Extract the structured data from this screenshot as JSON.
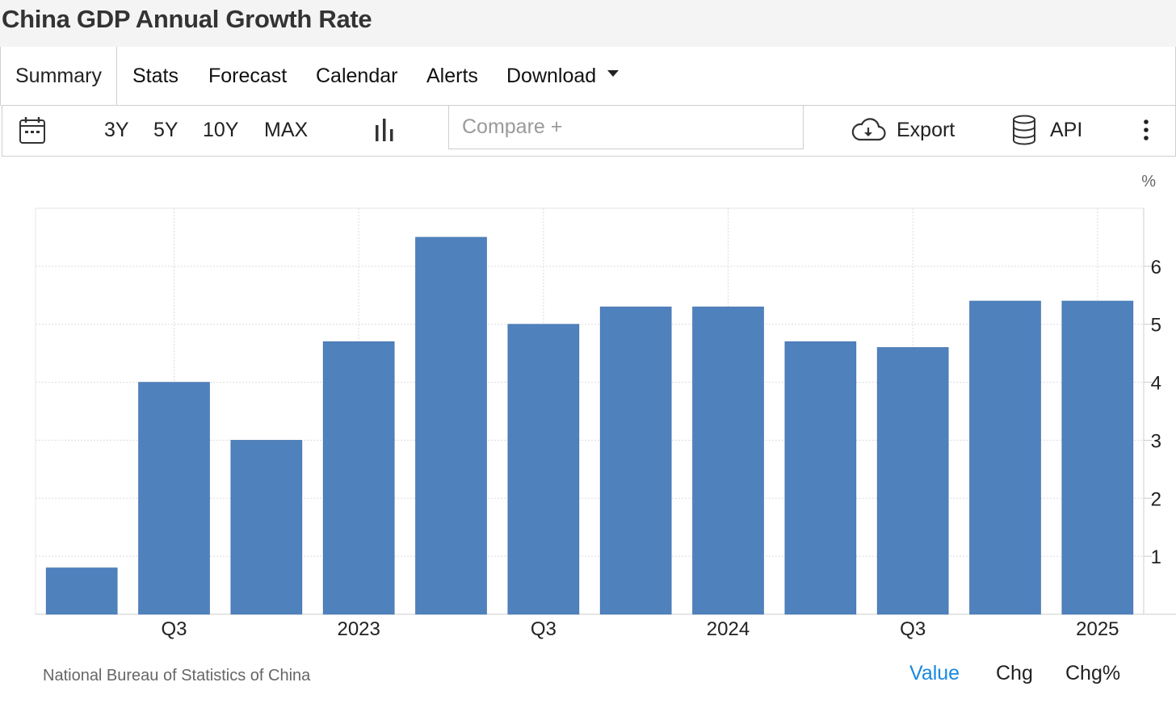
{
  "page_title": "China GDP Annual Growth Rate",
  "tabs": [
    {
      "label": "Summary",
      "active": true
    },
    {
      "label": "Stats"
    },
    {
      "label": "Forecast"
    },
    {
      "label": "Calendar"
    },
    {
      "label": "Alerts"
    },
    {
      "label": "Download"
    }
  ],
  "toolbar": {
    "ranges": [
      "3Y",
      "5Y",
      "10Y",
      "MAX"
    ],
    "compare_placeholder": "Compare +",
    "export_label": "Export",
    "api_label": "API",
    "icons": [
      "calendar-icon",
      "bar-chart-icon",
      "cloud-download-icon",
      "database-icon",
      "more-vertical-icon"
    ]
  },
  "chart_data": {
    "type": "bar",
    "unit": "%",
    "values": [
      0.8,
      4.0,
      3.0,
      4.7,
      6.5,
      5.0,
      5.3,
      5.3,
      4.7,
      4.6,
      5.4,
      5.4
    ],
    "x_tick_labels": [
      {
        "label": "Q3",
        "after_bar": 1
      },
      {
        "label": "2023",
        "after_bar": 3
      },
      {
        "label": "Q3",
        "after_bar": 5
      },
      {
        "label": "2024",
        "after_bar": 7
      },
      {
        "label": "Q3",
        "after_bar": 9
      },
      {
        "label": "2025",
        "after_bar": 11
      }
    ],
    "y_ticks": [
      1,
      2,
      3,
      4,
      5,
      6
    ],
    "ylim": [
      0,
      7
    ],
    "grid": true,
    "y_axis_side": "right",
    "bar_color": "#4f81bd"
  },
  "footer": {
    "source": "National Bureau of Statistics of China",
    "modes": [
      {
        "label": "Value",
        "active": true
      },
      {
        "label": "Chg"
      },
      {
        "label": "Chg%"
      }
    ],
    "active_color": "#1a88e0"
  }
}
